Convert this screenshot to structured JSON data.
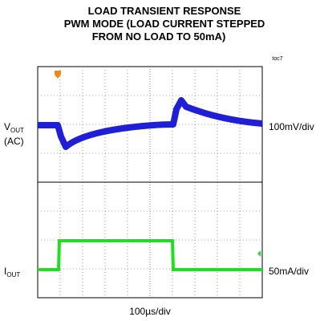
{
  "title": [
    "LOAD TRANSIENT RESPONSE",
    "PWM MODE (LOAD CURRENT STEPPED",
    "FROM NO LOAD TO 50mA)"
  ],
  "tag": "toc7",
  "channels": [
    {
      "label": "V",
      "subscript": "OUT",
      "note": "(AC)",
      "scale": "100mV/div"
    },
    {
      "label": "I",
      "subscript": "OUT",
      "scale": "50mA/div"
    }
  ],
  "timebase": "100µs/div"
}
